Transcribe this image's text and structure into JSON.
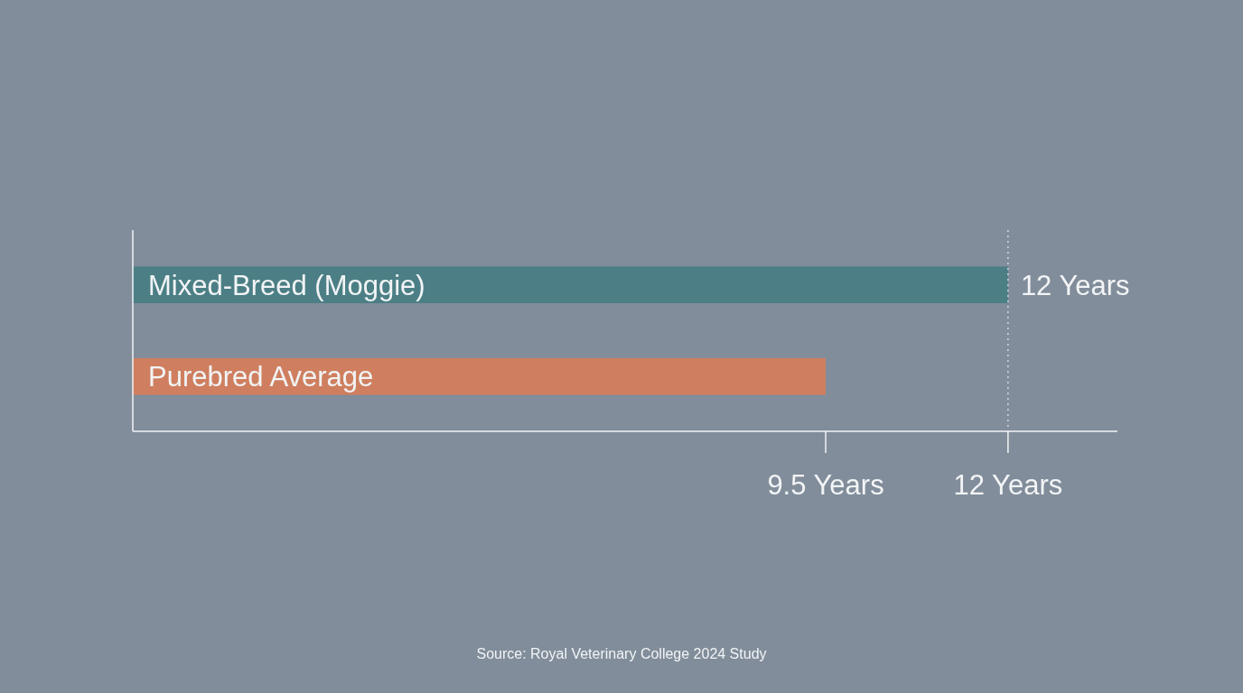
{
  "chart_data": {
    "type": "bar",
    "orientation": "horizontal",
    "categories": [
      "Mixed-Breed (Moggie)",
      "Purebred Average"
    ],
    "values": [
      12,
      9.5
    ],
    "colors": [
      "#4b7f85",
      "#cf7f5f"
    ],
    "value_labels": [
      "12 Years",
      null
    ],
    "xlim": [
      0,
      13.5
    ],
    "xticks": [
      {
        "value": 9.5,
        "label": "9.5 Years"
      },
      {
        "value": 12,
        "label": "12 Years"
      }
    ],
    "ref_lines": [
      {
        "axis": "x",
        "value": 12,
        "line_style": "dotted",
        "color": "#e8ecef"
      }
    ],
    "annotations": [
      "Source: Royal Veterinary College 2024 Study"
    ]
  }
}
